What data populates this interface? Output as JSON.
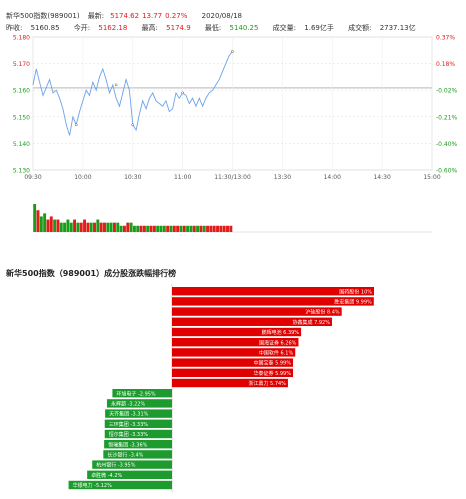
{
  "header": {
    "name": "新华500指数(989001)",
    "latest_label": "最新:",
    "latest": "5174.62",
    "change": "13.77",
    "change_pct": "0.27%",
    "date": "2020/08/18",
    "prev_close_label": "昨收:",
    "prev_close": "5160.85",
    "open_label": "今开:",
    "open": "5162.18",
    "high_label": "最高:",
    "high": "5174.9",
    "low_label": "最低:",
    "low": "5140.25",
    "volume_label": "成交量:",
    "volume": "1.69亿手",
    "amount_label": "成交额:",
    "amount": "2737.13亿",
    "colors": {
      "up": "#e21b1b",
      "down": "#1a9c1a",
      "line": "#6aa3e8"
    }
  },
  "chart_data": [
    {
      "type": "line",
      "prev_close": 5160.85,
      "ylim": [
        5130,
        5180
      ],
      "y_ticks_left": [
        "5.180",
        "5.170",
        "5.160",
        "5.150",
        "5.140",
        "5.130"
      ],
      "y_ticks_right": [
        "0.37%",
        "0.18%",
        "-0.02%",
        "-0.21%",
        "-0.40%",
        "-0.60%"
      ],
      "x_ticks": [
        "09:30",
        "10:00",
        "10:30",
        "11:00",
        "11:30/13:00",
        "13:30",
        "14:00",
        "14:30",
        "15:00"
      ],
      "total_minutes": 240,
      "series": [
        {
          "x": [
            0,
            2,
            4,
            6,
            8,
            10,
            12,
            14,
            16,
            18,
            20,
            22,
            24,
            26,
            28,
            30,
            32,
            34,
            36,
            38,
            40,
            42,
            44,
            46,
            48,
            50,
            52,
            54,
            56,
            58,
            60,
            62,
            64,
            66,
            68,
            70,
            72,
            74,
            76,
            78,
            80,
            82,
            84,
            86,
            88,
            90,
            92,
            94,
            96,
            98,
            100,
            102,
            104,
            106,
            108,
            110,
            112,
            114,
            116,
            118,
            120
          ],
          "values": [
            5162,
            5168,
            5163,
            5158,
            5161,
            5164,
            5159,
            5160,
            5157,
            5153,
            5147,
            5143,
            5150,
            5147,
            5152,
            5156,
            5160,
            5158,
            5163,
            5160,
            5165,
            5168,
            5164,
            5159,
            5162,
            5157,
            5154,
            5159,
            5164,
            5160,
            5147,
            5145,
            5151,
            5156,
            5153,
            5157,
            5159,
            5156,
            5155,
            5154,
            5156,
            5152,
            5153,
            5159,
            5157,
            5159,
            5158,
            5155,
            5157,
            5154,
            5157,
            5154,
            5157,
            5159,
            5160,
            5162,
            5164,
            5167,
            5170,
            5173,
            5174.6
          ]
        }
      ],
      "volume": {
        "values": [
          9,
          7,
          5,
          6,
          4,
          5,
          4,
          4,
          3,
          3,
          4,
          3,
          4,
          3,
          3,
          4,
          3,
          3,
          3,
          4,
          3,
          3,
          3,
          3,
          3,
          3,
          2,
          2,
          3,
          3,
          2,
          2,
          2,
          2,
          2,
          2,
          2,
          2,
          2,
          2,
          2,
          2,
          2,
          2,
          2,
          2,
          2,
          2,
          2,
          2,
          2,
          2,
          2,
          2,
          2,
          2,
          2,
          2,
          2,
          2
        ],
        "up": [
          0,
          1,
          0,
          0,
          1,
          1,
          0,
          1,
          0,
          0,
          0,
          0,
          1,
          0,
          1,
          1,
          1,
          0,
          1,
          0,
          1,
          1,
          0,
          0,
          1,
          0,
          0,
          1,
          1,
          0,
          0,
          0,
          1,
          1,
          0,
          1,
          1,
          0,
          0,
          0,
          1,
          0,
          1,
          1,
          0,
          1,
          0,
          0,
          1,
          0,
          1,
          0,
          1,
          1,
          1,
          1,
          1,
          1,
          1,
          1
        ]
      }
    },
    {
      "type": "bar",
      "title": "新华500指数（989001）成分股涨跌幅排行榜",
      "categories": [
        "国药股份",
        "胜宏集团",
        "沪硅股份",
        "协鑫集成",
        "鹏辉电池",
        "国海证券",
        "中国软件",
        "中国宝泰",
        "华泰证券",
        "浙江鼎力",
        "环旭电子",
        "永辉超",
        "天齐集团",
        "三环集团",
        "恒尔集团",
        "恒瑞集团",
        "长沙银行",
        "杭州银行",
        "卓胜微",
        "华银电力"
      ],
      "labels": [
        "国药股份 10%",
        "胜宏集团 9.99%",
        "沪硅股份 8.4%",
        "协鑫集成 7.92%",
        "鹏辉电池 6.39%",
        "国海证券 6.26%",
        "中国软件 6.1%",
        "中国宝泰 5.99%",
        "华泰证券 5.99%",
        "浙江鼎力 5.74%",
        "环旭电子 -2.95%",
        "永辉超 -3.22%",
        "天齐集团 -3.31%",
        "三环集团 -3.33%",
        "恒尔集团 -3.33%",
        "恒瑞集团 -3.36%",
        "长沙银行 -3.4%",
        "杭州银行 -3.95%",
        "卓胜微 -4.2%",
        "华银电力 -5.12%"
      ],
      "values": [
        10,
        9.99,
        8.4,
        7.92,
        6.39,
        6.26,
        6.1,
        5.99,
        5.99,
        5.74,
        -2.95,
        -3.22,
        -3.31,
        -3.33,
        -3.33,
        -3.36,
        -3.4,
        -3.95,
        -4.2,
        -5.12
      ],
      "colors": {
        "up": "#e00000",
        "down": "#1e9b2e"
      }
    }
  ]
}
